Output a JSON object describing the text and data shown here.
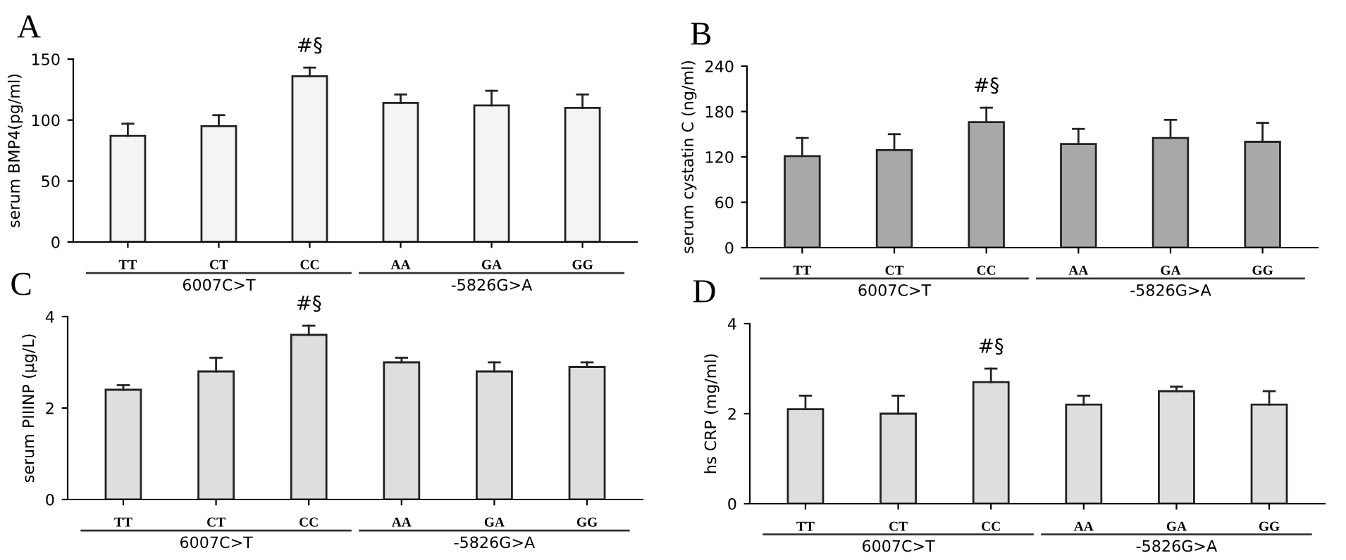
{
  "chart_data": [
    {
      "type": "bar",
      "title": "A",
      "ylabel": "serum BMP4(pg/ml)",
      "categories": [
        "TT",
        "CT",
        "CC",
        "AA",
        "GA",
        "GG"
      ],
      "values": [
        87,
        95,
        136,
        114,
        112,
        110
      ],
      "errors": [
        [
          87,
          97
        ],
        [
          95,
          104
        ],
        [
          136,
          143
        ],
        [
          114,
          121
        ],
        [
          112,
          124
        ],
        [
          110,
          121
        ]
      ],
      "color": "#f4f4f4",
      "ylim": [
        0,
        150
      ],
      "yticks": [
        0,
        50,
        100,
        150
      ],
      "grid": false,
      "annotations": [
        "6007C>T",
        "-5826G>A",
        {
          "text": "#§",
          "x": "CC",
          "y": 143
        }
      ]
    },
    {
      "type": "bar",
      "title": "B",
      "ylabel": "serum cystatin C (ng/ml)",
      "categories": [
        "TT",
        "CT",
        "CC",
        "AA",
        "GA",
        "GG"
      ],
      "values": [
        121,
        129,
        166,
        137,
        145,
        140
      ],
      "errors": [
        [
          121,
          145
        ],
        [
          129,
          150
        ],
        [
          166,
          185
        ],
        [
          137,
          157
        ],
        [
          145,
          169
        ],
        [
          140,
          165
        ]
      ],
      "color": "#a8a8a8",
      "ylim": [
        0,
        240
      ],
      "yticks": [
        0,
        60,
        120,
        180,
        240
      ],
      "grid": false,
      "annotations": [
        "6007C>T",
        "-5826G>A",
        {
          "text": "#§",
          "x": "CC",
          "y": 185
        }
      ]
    },
    {
      "type": "bar",
      "title": "C",
      "ylabel": "serum PIIINP (μg/L)",
      "categories": [
        "TT",
        "CT",
        "CC",
        "AA",
        "GA",
        "GG"
      ],
      "values": [
        2.4,
        2.8,
        3.6,
        3.0,
        2.8,
        2.9
      ],
      "errors": [
        [
          2.4,
          2.5
        ],
        [
          2.8,
          3.1
        ],
        [
          3.6,
          3.8
        ],
        [
          3.0,
          3.1
        ],
        [
          2.8,
          3.0
        ],
        [
          2.9,
          3.0
        ]
      ],
      "color": "#dedede",
      "ylim": [
        0,
        4
      ],
      "yticks": [
        0,
        2,
        4
      ],
      "grid": false,
      "annotations": [
        "6007C>T",
        "-5826G>A",
        {
          "text": "#§",
          "x": "CC",
          "y": 3.8
        }
      ]
    },
    {
      "type": "bar",
      "title": "D",
      "ylabel": "hs CRP (mg/ml)",
      "categories": [
        "TT",
        "CT",
        "CC",
        "AA",
        "GA",
        "GG"
      ],
      "values": [
        2.1,
        2.0,
        2.7,
        2.2,
        2.5,
        2.2
      ],
      "errors": [
        [
          2.1,
          2.4
        ],
        [
          2.0,
          2.4
        ],
        [
          2.7,
          3.0
        ],
        [
          2.2,
          2.4
        ],
        [
          2.5,
          2.6
        ],
        [
          2.2,
          2.5
        ]
      ],
      "color": "#dedede",
      "ylim": [
        0,
        4
      ],
      "yticks": [
        0,
        2,
        4
      ],
      "grid": false,
      "annotations": [
        "6007C>T",
        "-5826G>A",
        {
          "text": "#§",
          "x": "CC",
          "y": 3.0
        }
      ]
    }
  ]
}
